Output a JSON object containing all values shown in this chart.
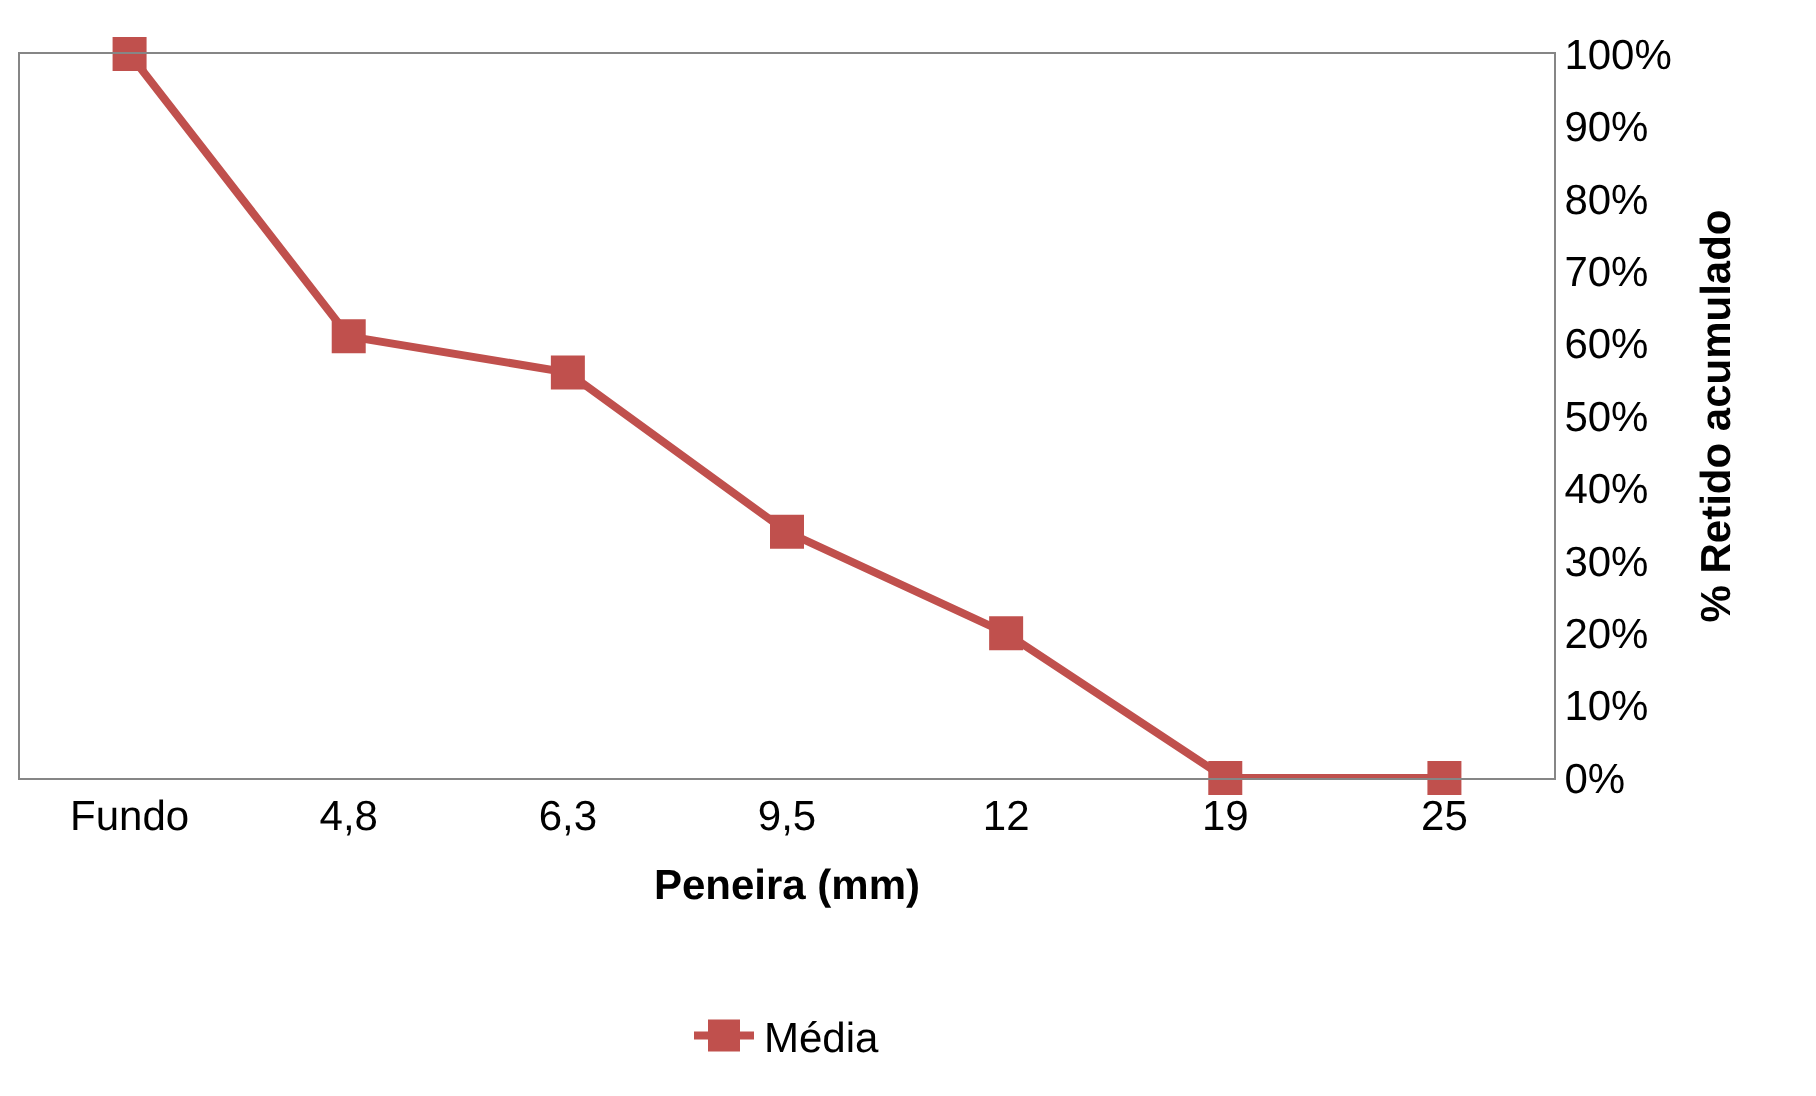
{
  "chart_data": {
    "type": "line",
    "xlabel": "Peneira (mm)",
    "ylabel": "% Retido acumulado",
    "categories": [
      "Fundo",
      "4,8",
      "6,3",
      "9,5",
      "12",
      "19",
      "25"
    ],
    "series": [
      {
        "name": "Média",
        "color": "#c0504d",
        "values": [
          100,
          61,
          56,
          34,
          20,
          0,
          0
        ]
      }
    ],
    "ylim": [
      0,
      100
    ],
    "yticks": [
      {
        "value": 0,
        "label": "0%"
      },
      {
        "value": 10,
        "label": "10%"
      },
      {
        "value": 20,
        "label": "20%"
      },
      {
        "value": 30,
        "label": "30%"
      },
      {
        "value": 40,
        "label": "40%"
      },
      {
        "value": 50,
        "label": "50%"
      },
      {
        "value": 60,
        "label": "60%"
      },
      {
        "value": 70,
        "label": "70%"
      },
      {
        "value": 80,
        "label": "80%"
      },
      {
        "value": 90,
        "label": "90%"
      },
      {
        "value": 100,
        "label": "100%"
      }
    ],
    "grid": false,
    "legend": "bottom",
    "marker": "square",
    "line_style": "solid"
  }
}
